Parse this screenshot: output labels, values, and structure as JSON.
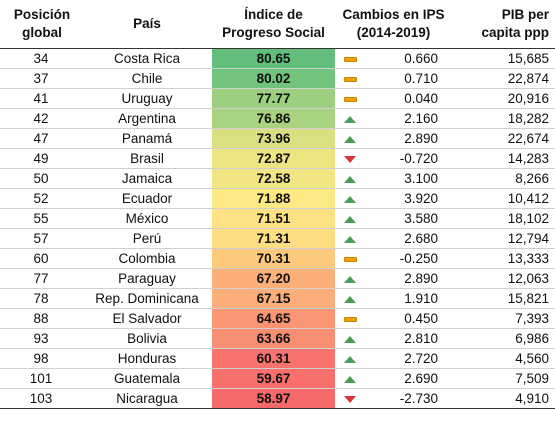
{
  "headers": {
    "pos_line1": "Posición",
    "pos_line2": "global",
    "pais": "País",
    "ips_line1": "Índice de",
    "ips_line2": "Progreso Social",
    "cambio_line1": "Cambios en IPS",
    "cambio_line2": "(2014-2019)",
    "pib_line1": "PIB per",
    "pib_line2": "capita ppp"
  },
  "rows": [
    {
      "pos": "34",
      "pais": "Costa Rica",
      "ips": "80.65",
      "trend": "flat",
      "cambio": "0.660",
      "pib": "15,685",
      "color": "#63be7b"
    },
    {
      "pos": "37",
      "pais": "Chile",
      "ips": "80.02",
      "trend": "flat",
      "cambio": "0.710",
      "pib": "22,874",
      "color": "#72c37c"
    },
    {
      "pos": "41",
      "pais": "Uruguay",
      "ips": "77.77",
      "trend": "flat",
      "cambio": "0.040",
      "pib": "20,916",
      "color": "#9ccf7f"
    },
    {
      "pos": "42",
      "pais": "Argentina",
      "ips": "76.86",
      "trend": "up",
      "cambio": "2.160",
      "pib": "18,282",
      "color": "#aad380"
    },
    {
      "pos": "47",
      "pais": "Panamá",
      "ips": "73.96",
      "trend": "up",
      "cambio": "2.890",
      "pib": "22,674",
      "color": "#dae082"
    },
    {
      "pos": "49",
      "pais": "Brasil",
      "ips": "72.87",
      "trend": "down",
      "cambio": "-0.720",
      "pib": "14,283",
      "color": "#ece582"
    },
    {
      "pos": "50",
      "pais": "Jamaica",
      "ips": "72.58",
      "trend": "up",
      "cambio": "3.100",
      "pib": "8,266",
      "color": "#f1e683"
    },
    {
      "pos": "52",
      "pais": "Ecuador",
      "ips": "71.88",
      "trend": "up",
      "cambio": "3.920",
      "pib": "10,412",
      "color": "#fde984"
    },
    {
      "pos": "55",
      "pais": "México",
      "ips": "71.51",
      "trend": "up",
      "cambio": "3.580",
      "pib": "18,102",
      "color": "#fee182"
    },
    {
      "pos": "57",
      "pais": "Perú",
      "ips": "71.31",
      "trend": "up",
      "cambio": "2.680",
      "pib": "12,794",
      "color": "#fedc81"
    },
    {
      "pos": "60",
      "pais": "Colombia",
      "ips": "70.31",
      "trend": "flat",
      "cambio": "-0.250",
      "pib": "13,333",
      "color": "#fdc97d"
    },
    {
      "pos": "77",
      "pais": "Paraguay",
      "ips": "67.20",
      "trend": "up",
      "cambio": "2.890",
      "pib": "12,063",
      "color": "#fbb079"
    },
    {
      "pos": "78",
      "pais": "Rep. Dominicana",
      "ips": "67.15",
      "trend": "up",
      "cambio": "1.910",
      "pib": "15,821",
      "color": "#fbae79"
    },
    {
      "pos": "88",
      "pais": "El Salvador",
      "ips": "64.65",
      "trend": "flat",
      "cambio": "0.450",
      "pib": "7,393",
      "color": "#f99474"
    },
    {
      "pos": "93",
      "pais": "Bolivia",
      "ips": "63.66",
      "trend": "up",
      "cambio": "2.810",
      "pib": "6,986",
      "color": "#f88f73"
    },
    {
      "pos": "98",
      "pais": "Honduras",
      "ips": "60.31",
      "trend": "up",
      "cambio": "2.720",
      "pib": "4,560",
      "color": "#f8736d"
    },
    {
      "pos": "101",
      "pais": "Guatemala",
      "ips": "59.67",
      "trend": "up",
      "cambio": "2.690",
      "pib": "7,509",
      "color": "#f86f6c"
    },
    {
      "pos": "103",
      "pais": "Nicaragua",
      "ips": "58.97",
      "trend": "down",
      "cambio": "-2.730",
      "pib": "4,910",
      "color": "#f8696b"
    }
  ],
  "trend_icons": {
    "up": "triangle-up-icon",
    "down": "triangle-down-icon",
    "flat": "dash-icon"
  },
  "trend_colors": {
    "up": "#4a9e58",
    "down": "#d8383a",
    "flat": "#f2a000"
  }
}
